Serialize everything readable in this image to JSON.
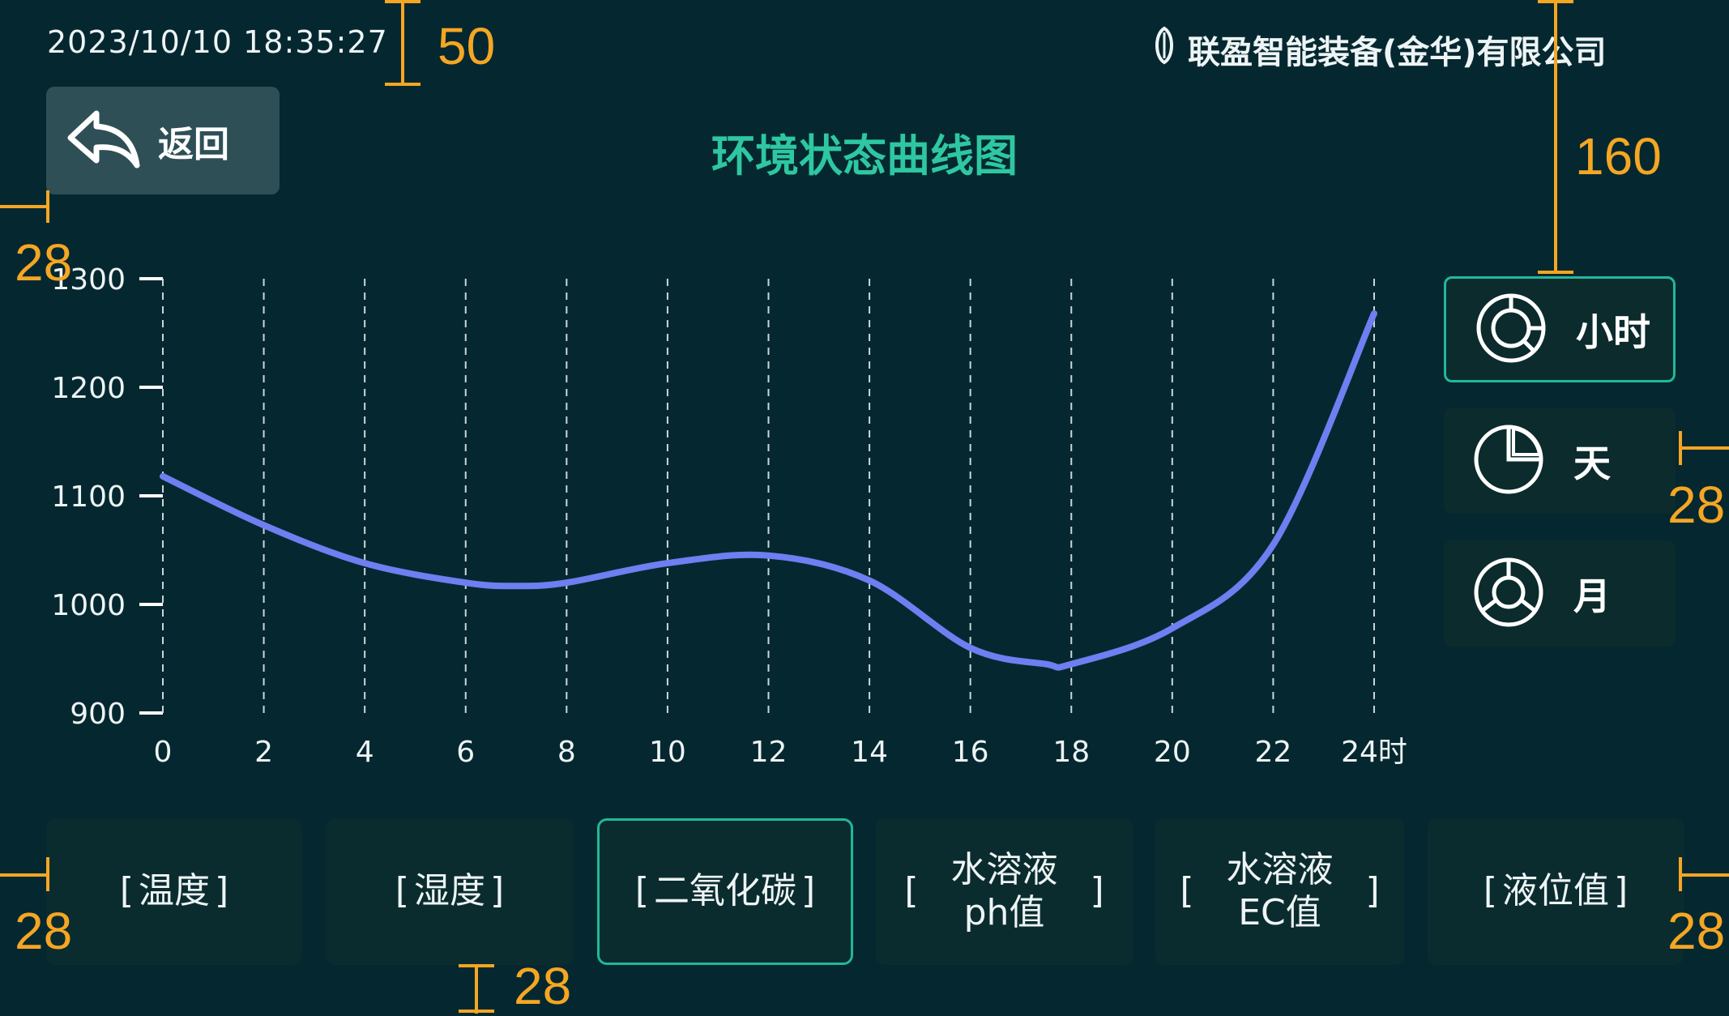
{
  "header": {
    "datetime": "2023/10/10 18:35:27",
    "company": "联盈智能装备(金华)有限公司",
    "page_title": "环境状态曲线图"
  },
  "back_button": {
    "label": "返回"
  },
  "period_buttons": [
    {
      "label": "小时",
      "icon": "hour-chart-icon",
      "active": true
    },
    {
      "label": "天",
      "icon": "day-pie-icon",
      "active": false
    },
    {
      "label": "月",
      "icon": "month-donut-icon",
      "active": false
    }
  ],
  "metric_buttons": [
    {
      "label": "温度",
      "active": false
    },
    {
      "label": "湿度",
      "active": false
    },
    {
      "label": "二氧化碳",
      "active": true
    },
    {
      "line1": "水溶液",
      "line2": "ph值",
      "active": false
    },
    {
      "line1": "水溶液",
      "line2": "EC值",
      "active": false
    },
    {
      "label": "液位值",
      "active": false
    }
  ],
  "brackets": {
    "open": "[",
    "close": "]"
  },
  "annotations": {
    "top_margin": "50",
    "left_margin": "28",
    "right_offset": "160",
    "right_gap": "28",
    "bottom_left": "28",
    "bottom_gap": "28",
    "bottom_right": "28"
  },
  "colors": {
    "background": "#052830",
    "accent": "#2ec7a1",
    "line": "#6f7ef0",
    "button": "#0b2c2e",
    "back_button": "#2e4f56",
    "annotation": "#f5a623"
  },
  "chart_data": {
    "type": "line",
    "x_ticks": [
      "0",
      "2",
      "4",
      "6",
      "8",
      "10",
      "12",
      "14",
      "16",
      "18",
      "20",
      "22",
      "24时"
    ],
    "y_ticks": [
      "1300",
      "1200",
      "1100",
      "1000",
      "900"
    ],
    "ylim": [
      900,
      1300
    ],
    "xlim": [
      0,
      24
    ],
    "grid": "vertical-dashed",
    "series": [
      {
        "x": [
          0,
          2,
          4,
          6,
          7,
          8,
          10,
          12,
          14,
          16,
          17.5,
          18,
          20,
          22,
          24
        ],
        "values": [
          1118,
          1073,
          1038,
          1020,
          1017,
          1020,
          1038,
          1045,
          1022,
          960,
          945,
          945,
          978,
          1055,
          1268
        ]
      }
    ]
  }
}
